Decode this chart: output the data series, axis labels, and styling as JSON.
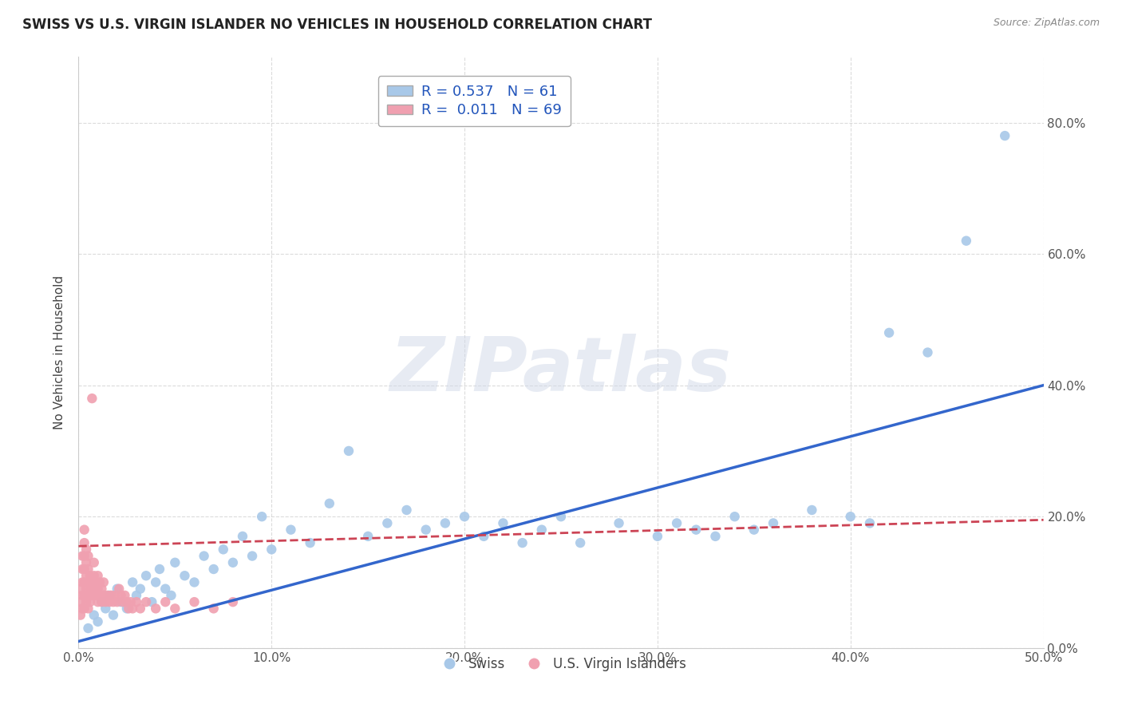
{
  "title": "SWISS VS U.S. VIRGIN ISLANDER NO VEHICLES IN HOUSEHOLD CORRELATION CHART",
  "source": "Source: ZipAtlas.com",
  "ylabel": "No Vehicles in Household",
  "xlim": [
    0,
    0.5
  ],
  "ylim": [
    0,
    0.9
  ],
  "xticks": [
    0.0,
    0.1,
    0.2,
    0.3,
    0.4,
    0.5
  ],
  "yticks_right": [
    0.0,
    0.2,
    0.4,
    0.6,
    0.8
  ],
  "swiss_R": 0.537,
  "swiss_N": 61,
  "vi_R": 0.011,
  "vi_N": 69,
  "swiss_color": "#a8c8e8",
  "vi_color": "#f0a0b0",
  "swiss_line_color": "#3366cc",
  "vi_line_color": "#cc4455",
  "background_color": "#ffffff",
  "grid_color": "#cccccc",
  "watermark": "ZIPatlas",
  "legend_label_swiss": "Swiss",
  "legend_label_vi": "U.S. Virgin Islanders",
  "swiss_x": [
    0.005,
    0.008,
    0.01,
    0.012,
    0.014,
    0.016,
    0.018,
    0.02,
    0.022,
    0.025,
    0.028,
    0.03,
    0.032,
    0.035,
    0.038,
    0.04,
    0.042,
    0.045,
    0.048,
    0.05,
    0.055,
    0.06,
    0.065,
    0.07,
    0.075,
    0.08,
    0.085,
    0.09,
    0.095,
    0.1,
    0.11,
    0.12,
    0.13,
    0.14,
    0.15,
    0.16,
    0.17,
    0.18,
    0.19,
    0.2,
    0.21,
    0.22,
    0.23,
    0.24,
    0.25,
    0.26,
    0.28,
    0.3,
    0.31,
    0.32,
    0.33,
    0.34,
    0.35,
    0.36,
    0.38,
    0.4,
    0.41,
    0.42,
    0.44,
    0.46,
    0.48
  ],
  "swiss_y": [
    0.03,
    0.05,
    0.04,
    0.07,
    0.06,
    0.08,
    0.05,
    0.09,
    0.07,
    0.06,
    0.1,
    0.08,
    0.09,
    0.11,
    0.07,
    0.1,
    0.12,
    0.09,
    0.08,
    0.13,
    0.11,
    0.1,
    0.14,
    0.12,
    0.15,
    0.13,
    0.17,
    0.14,
    0.2,
    0.15,
    0.18,
    0.16,
    0.22,
    0.3,
    0.17,
    0.19,
    0.21,
    0.18,
    0.19,
    0.2,
    0.17,
    0.19,
    0.16,
    0.18,
    0.2,
    0.16,
    0.19,
    0.17,
    0.19,
    0.18,
    0.17,
    0.2,
    0.18,
    0.19,
    0.21,
    0.2,
    0.19,
    0.48,
    0.45,
    0.62,
    0.78
  ],
  "vi_x": [
    0.001,
    0.001,
    0.001,
    0.002,
    0.002,
    0.002,
    0.002,
    0.002,
    0.003,
    0.003,
    0.003,
    0.003,
    0.003,
    0.003,
    0.003,
    0.004,
    0.004,
    0.004,
    0.004,
    0.004,
    0.005,
    0.005,
    0.005,
    0.005,
    0.005,
    0.006,
    0.006,
    0.006,
    0.007,
    0.007,
    0.007,
    0.008,
    0.008,
    0.008,
    0.009,
    0.009,
    0.01,
    0.01,
    0.01,
    0.011,
    0.011,
    0.012,
    0.012,
    0.013,
    0.013,
    0.014,
    0.015,
    0.016,
    0.017,
    0.018,
    0.019,
    0.02,
    0.021,
    0.022,
    0.023,
    0.024,
    0.025,
    0.026,
    0.027,
    0.028,
    0.03,
    0.032,
    0.035,
    0.04,
    0.045,
    0.05,
    0.06,
    0.07,
    0.08
  ],
  "vi_y": [
    0.05,
    0.07,
    0.09,
    0.06,
    0.08,
    0.1,
    0.12,
    0.14,
    0.06,
    0.08,
    0.1,
    0.12,
    0.14,
    0.16,
    0.18,
    0.07,
    0.09,
    0.11,
    0.13,
    0.15,
    0.06,
    0.08,
    0.1,
    0.12,
    0.14,
    0.07,
    0.09,
    0.11,
    0.08,
    0.1,
    0.38,
    0.09,
    0.11,
    0.13,
    0.08,
    0.1,
    0.07,
    0.09,
    0.11,
    0.08,
    0.1,
    0.07,
    0.09,
    0.08,
    0.1,
    0.07,
    0.08,
    0.07,
    0.08,
    0.07,
    0.08,
    0.07,
    0.09,
    0.08,
    0.07,
    0.08,
    0.07,
    0.06,
    0.07,
    0.06,
    0.07,
    0.06,
    0.07,
    0.06,
    0.07,
    0.06,
    0.07,
    0.06,
    0.07
  ],
  "swiss_trend_x": [
    0.0,
    0.5
  ],
  "swiss_trend_y": [
    0.01,
    0.4
  ],
  "vi_trend_x": [
    0.0,
    0.5
  ],
  "vi_trend_y": [
    0.155,
    0.195
  ]
}
